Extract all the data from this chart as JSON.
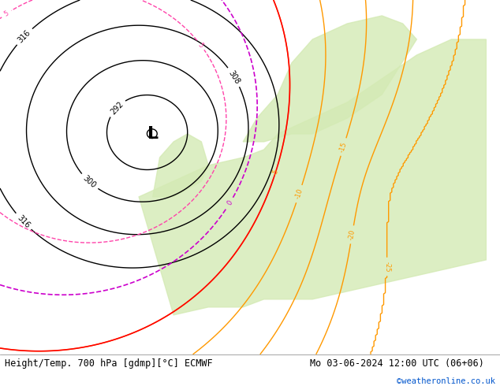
{
  "title_left": "Height/Temp. 700 hPa [gdmp][°C] ECMWF",
  "title_right": "Mo 03-06-2024 12:00 UTC (06+06)",
  "credit": "©weatheronline.co.uk",
  "fig_width": 6.34,
  "fig_height": 4.9,
  "dpi": 100,
  "map_bg_land_light": "#d4eab4",
  "map_bg_land_medium": "#c8e0a0",
  "map_bg_sea": "#e8e8e8",
  "map_bg_sea2": "#f0f0f0",
  "contour_black": "#000000",
  "contour_orange": "#ff9900",
  "contour_red": "#ff0000",
  "contour_magenta": "#cc00cc",
  "contour_pink": "#ff44aa",
  "contour_green": "#00aa44",
  "contour_teal": "#00aaaa",
  "bottom_bar_height": 0.082,
  "bottom_bar_color": "#ffffff",
  "label_fontsize": 8.5,
  "credit_fontsize": 7.5,
  "credit_color": "#0055cc"
}
